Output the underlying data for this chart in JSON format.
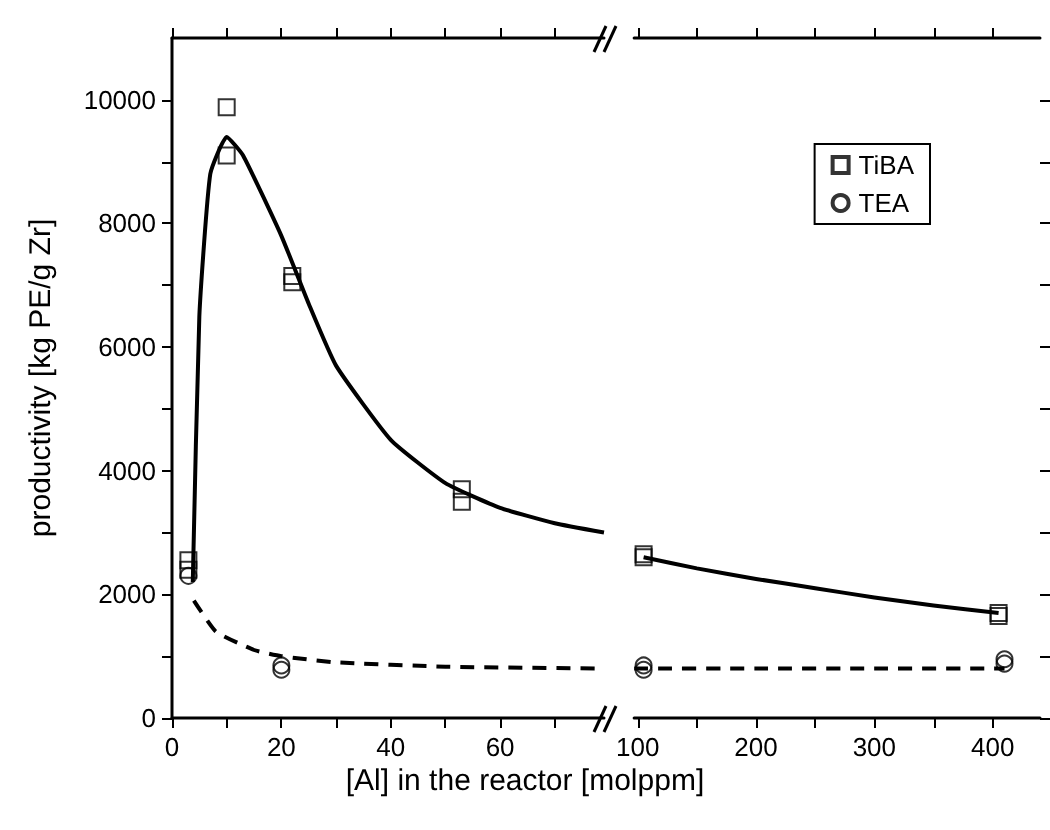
{
  "chart_data": [
    {
      "type": "scatter",
      "xlabel": "[Al] in the reactor [molppm]",
      "ylabel": "productivity [kg PE/g Zr]",
      "xlim": [
        0,
        79
      ],
      "xticks": [
        0,
        {
          "value": 10,
          "label": null
        },
        20,
        {
          "value": 30,
          "label": null
        },
        40,
        {
          "value": 50,
          "label": null
        },
        60,
        {
          "value": 70,
          "label": null
        }
      ],
      "ylim": [
        0,
        11000
      ],
      "yticks": [
        0,
        {
          "value": 1000,
          "label": null
        },
        2000,
        {
          "value": 3000,
          "label": null
        },
        4000,
        {
          "value": 5000,
          "label": null
        },
        6000,
        {
          "value": 7000,
          "label": null
        },
        8000,
        {
          "value": 9000,
          "label": null
        },
        10000
      ],
      "grid": false,
      "legend": false,
      "series": [
        {
          "color": "#000000",
          "marker": "square",
          "x": [
            3,
            3,
            10,
            10,
            22,
            22,
            53,
            53
          ],
          "values": [
            2550,
            2400,
            9880,
            9100,
            7150,
            7050,
            3700,
            3500
          ]
        },
        {
          "color": "#000000",
          "marker": "circle",
          "x": [
            3,
            20,
            20
          ],
          "values": [
            2300,
            850,
            780
          ]
        },
        {
          "type": "line",
          "color": "#000000",
          "marker": "none",
          "line_style": "solid",
          "x": [
            3.8,
            5,
            7,
            10,
            13,
            20,
            25,
            30,
            40,
            50,
            60,
            70,
            79
          ],
          "values": [
            2200,
            6500,
            8800,
            9400,
            9100,
            7800,
            6700,
            5700,
            4500,
            3800,
            3400,
            3150,
            3000
          ]
        },
        {
          "type": "line",
          "color": "#000000",
          "marker": "none",
          "line_style": "dashed",
          "x": [
            4,
            8,
            15,
            20,
            30,
            50,
            79
          ],
          "values": [
            1900,
            1400,
            1100,
            1000,
            900,
            830,
            800
          ]
        }
      ]
    },
    {
      "type": "scatter",
      "xlim": [
        97,
        440
      ],
      "xticks": [
        100,
        {
          "value": 150,
          "label": null
        },
        200,
        {
          "value": 250,
          "label": null
        },
        300,
        {
          "value": 350,
          "label": null
        },
        400
      ],
      "ylim": [
        0,
        11000
      ],
      "yticks": [
        0,
        {
          "value": 1000,
          "label": null
        },
        2000,
        {
          "value": 3000,
          "label": null
        },
        4000,
        {
          "value": 5000,
          "label": null
        },
        6000,
        {
          "value": 7000,
          "label": null
        },
        8000,
        {
          "value": 9000,
          "label": null
        },
        10000
      ],
      "grid": false,
      "legend": "top right",
      "tick_labels": "x",
      "series": [
        {
          "name": "TiBA",
          "color": "#000000",
          "marker": "square",
          "x": [
            105,
            105,
            405,
            405
          ],
          "values": [
            2650,
            2600,
            1700,
            1650
          ]
        },
        {
          "name": "TEA",
          "color": "#000000",
          "marker": "circle",
          "x": [
            105,
            105,
            410,
            410
          ],
          "values": [
            850,
            780,
            950,
            880
          ]
        },
        {
          "type": "line",
          "color": "#000000",
          "marker": "none",
          "line_style": "solid",
          "x": [
            105,
            150,
            200,
            250,
            300,
            350,
            405
          ],
          "values": [
            2600,
            2420,
            2250,
            2100,
            1950,
            1820,
            1700
          ]
        },
        {
          "type": "line",
          "color": "#000000",
          "marker": "none",
          "line_style": "dashed",
          "x": [
            97,
            200,
            300,
            410
          ],
          "values": [
            800,
            800,
            800,
            800
          ]
        }
      ]
    }
  ]
}
